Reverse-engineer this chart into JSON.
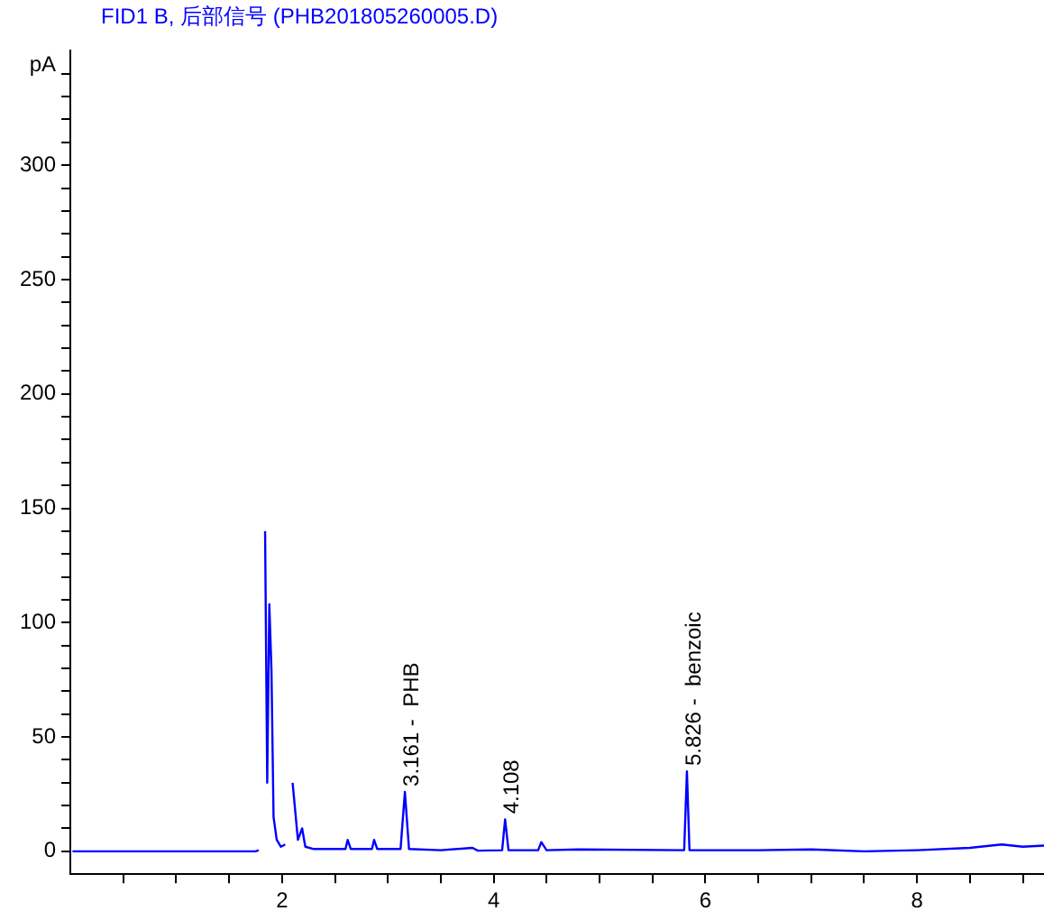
{
  "chart_data": {
    "type": "line",
    "title": "FID1 B, 后部信号 (PHB201805260005.D)",
    "ylabel": "pA",
    "x": [
      0.02,
      1.0,
      1.75,
      1.78,
      1.8,
      1.82,
      1.84,
      1.86,
      1.88,
      1.9,
      1.92,
      1.95,
      1.99,
      2.03,
      2.05,
      2.08,
      2.1,
      2.12,
      2.15,
      2.19,
      2.22,
      2.3,
      2.6,
      2.62,
      2.65,
      2.85,
      2.87,
      2.9,
      3.12,
      3.161,
      3.2,
      3.5,
      3.8,
      3.85,
      4.08,
      4.108,
      4.14,
      4.42,
      4.45,
      4.5,
      4.8,
      5.8,
      5.826,
      5.85,
      6.5,
      7.0,
      7.5,
      8.0,
      8.5,
      8.8,
      9.0,
      9.2
    ],
    "series": [
      {
        "color": "#0000ff",
        "values": [
          0,
          0,
          0,
          0.5,
          null,
          null,
          140,
          30,
          108,
          80,
          15,
          5,
          2,
          3,
          null,
          null,
          30,
          20,
          5,
          10,
          2,
          1,
          1,
          5,
          1,
          1,
          5,
          1,
          1,
          26,
          1,
          0.5,
          1.5,
          0.3,
          0.5,
          14,
          0.5,
          0.5,
          4,
          0.5,
          0.8,
          0.5,
          35,
          0.5,
          0.5,
          0.8,
          0,
          0.5,
          1.5,
          3,
          2,
          2.5
        ]
      }
    ],
    "xlim": [
      0,
      9.2
    ],
    "ylim": [
      -10,
      350
    ],
    "xticks": [
      {
        "value": 0.5,
        "label": null
      },
      {
        "value": 1,
        "label": null
      },
      {
        "value": 1.5,
        "label": null
      },
      2,
      {
        "value": 2.5,
        "label": null
      },
      {
        "value": 3,
        "label": null
      },
      {
        "value": 3.5,
        "label": null
      },
      4,
      {
        "value": 4.5,
        "label": null
      },
      {
        "value": 5,
        "label": null
      },
      {
        "value": 5.5,
        "label": null
      },
      6,
      {
        "value": 6.5,
        "label": null
      },
      {
        "value": 7,
        "label": null
      },
      {
        "value": 7.5,
        "label": null
      },
      8,
      {
        "value": 8.5,
        "label": null
      },
      {
        "value": 9,
        "label": null
      }
    ],
    "yticks": [
      0,
      {
        "value": 10,
        "label": null
      },
      {
        "value": 20,
        "label": null
      },
      {
        "value": 30,
        "label": null
      },
      {
        "value": 40,
        "label": null
      },
      50,
      {
        "value": 60,
        "label": null
      },
      {
        "value": 70,
        "label": null
      },
      {
        "value": 80,
        "label": null
      },
      {
        "value": 90,
        "label": null
      },
      100,
      {
        "value": 110,
        "label": null
      },
      {
        "value": 120,
        "label": null
      },
      {
        "value": 130,
        "label": null
      },
      {
        "value": 140,
        "label": null
      },
      150,
      {
        "value": 160,
        "label": null
      },
      {
        "value": 170,
        "label": null
      },
      {
        "value": 180,
        "label": null
      },
      {
        "value": 190,
        "label": null
      },
      200,
      {
        "value": 210,
        "label": null
      },
      {
        "value": 220,
        "label": null
      },
      {
        "value": 230,
        "label": null
      },
      {
        "value": 240,
        "label": null
      },
      250,
      {
        "value": 260,
        "label": null
      },
      {
        "value": 270,
        "label": null
      },
      {
        "value": 280,
        "label": null
      },
      {
        "value": 290,
        "label": null
      },
      300,
      {
        "value": 310,
        "label": null
      },
      {
        "value": 320,
        "label": null
      },
      {
        "value": 330,
        "label": null
      },
      {
        "value": 340,
        "label": null
      }
    ],
    "annotations": [
      {
        "text": "3.161 -  PHB",
        "x": 3.161,
        "y": 26
      },
      {
        "text": "4.108",
        "x": 4.108,
        "y": 14
      },
      {
        "text": "5.826 -  benzoic",
        "x": 5.826,
        "y": 35
      }
    ],
    "grid": false,
    "legend": false,
    "marker": "none",
    "line_style": "solid"
  }
}
